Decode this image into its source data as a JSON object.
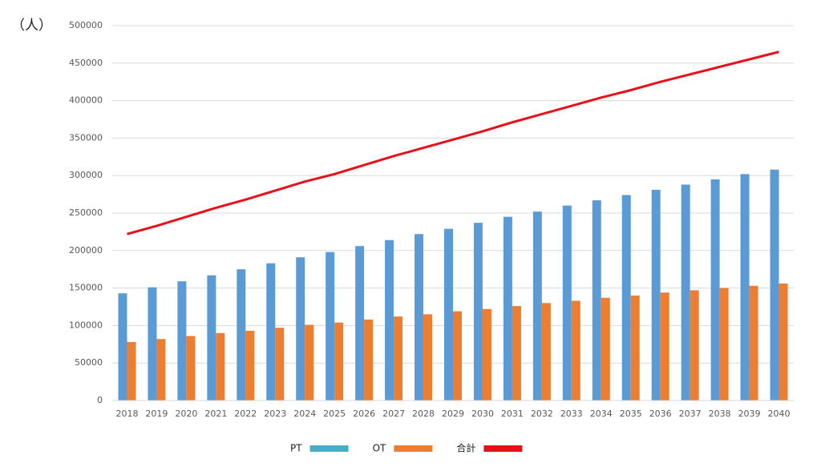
{
  "chart_data": {
    "type": "bar",
    "y_label": "（人）",
    "categories": [
      "2018",
      "2019",
      "2020",
      "2021",
      "2022",
      "2023",
      "2024",
      "2025",
      "2026",
      "2027",
      "2028",
      "2029",
      "2030",
      "2031",
      "2032",
      "2033",
      "2034",
      "2035",
      "2036",
      "2037",
      "2038",
      "2039",
      "2040"
    ],
    "series": [
      {
        "name": "PT",
        "type": "bar",
        "color": "#5b9bd5",
        "legend_color": "#4bacc6",
        "values": [
          143000,
          151000,
          159000,
          167000,
          175000,
          183000,
          191000,
          198000,
          206000,
          214000,
          222000,
          229000,
          237000,
          245000,
          252000,
          260000,
          267000,
          274000,
          281000,
          288000,
          295000,
          302000,
          308000
        ]
      },
      {
        "name": "OT",
        "type": "bar",
        "color": "#ed7d31",
        "values": [
          78000,
          82000,
          86000,
          90000,
          93000,
          97000,
          101000,
          104000,
          108000,
          112000,
          115000,
          119000,
          122000,
          126000,
          130000,
          133000,
          137000,
          140000,
          144000,
          147000,
          150000,
          153000,
          156000
        ]
      },
      {
        "name": "合計",
        "type": "line",
        "color": "#e8101a",
        "values": [
          222000,
          233000,
          245000,
          257000,
          268000,
          280000,
          292000,
          302000,
          314000,
          326000,
          337000,
          348000,
          359000,
          371000,
          382000,
          393000,
          404000,
          414000,
          425000,
          435000,
          445000,
          455000,
          465000
        ]
      }
    ],
    "ylim": [
      0,
      500000
    ],
    "yticks": [
      0,
      50000,
      100000,
      150000,
      200000,
      250000,
      300000,
      350000,
      400000,
      450000,
      500000
    ],
    "grid": true,
    "legend": "bottom"
  }
}
